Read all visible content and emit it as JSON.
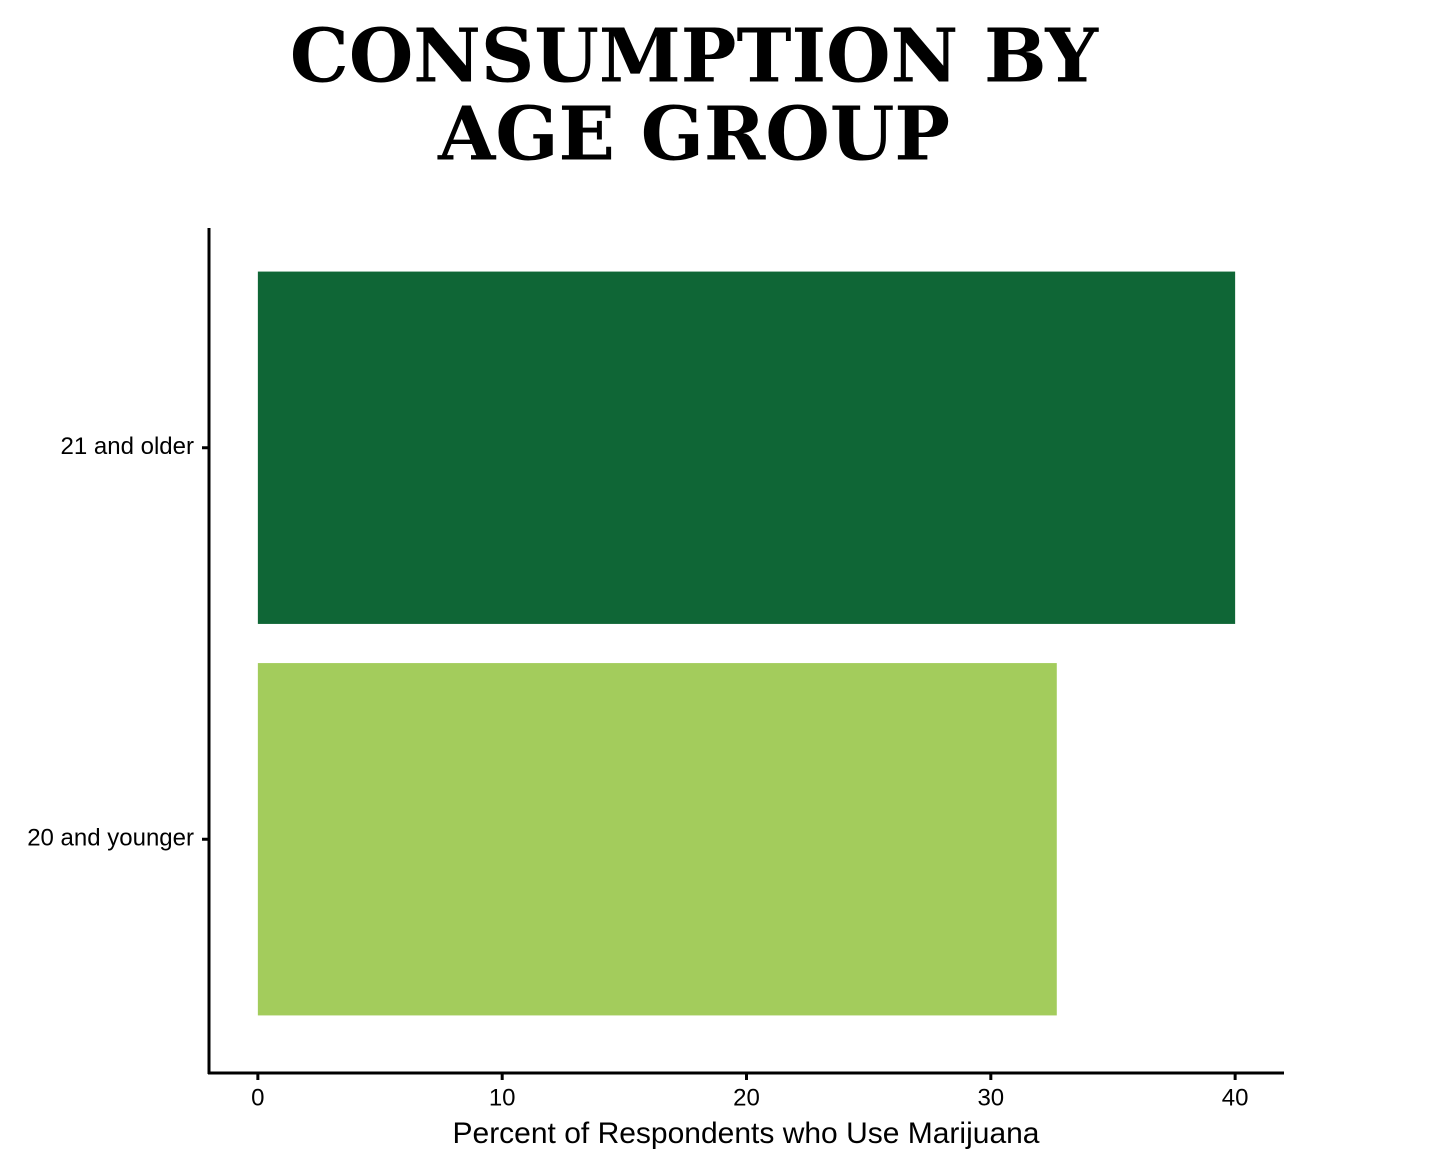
{
  "chart_data": {
    "type": "bar",
    "orientation": "horizontal",
    "title": [
      "CONSUMPTION BY",
      "AGE GROUP"
    ],
    "x_label": "Percent of Respondents who Use Marijuana",
    "categories": [
      "21 and older",
      "20 and younger"
    ],
    "values": [
      40,
      32.7
    ],
    "colors": [
      "#0f6636",
      "#a3cc5c"
    ],
    "xlim": [
      -2,
      42
    ],
    "xticks": [
      0,
      10,
      20,
      30,
      40
    ],
    "grid": false
  }
}
